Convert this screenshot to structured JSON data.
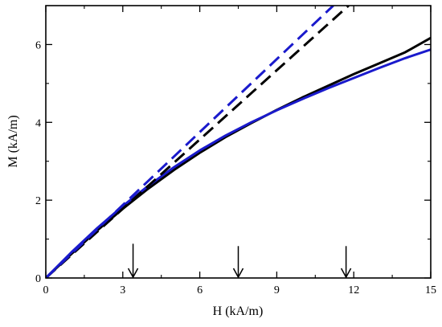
{
  "chart_data": {
    "type": "line",
    "xlabel": "H (kA/m)",
    "ylabel": "M (kA/m)",
    "xlim": [
      0,
      15
    ],
    "ylim": [
      0,
      7
    ],
    "x_ticks": [
      0,
      3,
      6,
      9,
      12,
      15
    ],
    "y_ticks": [
      0,
      2,
      4,
      6
    ],
    "x_tick_labels": [
      "0",
      "3",
      "6",
      "9",
      "12",
      "15"
    ],
    "y_tick_labels": [
      "0",
      "2",
      "4",
      "6"
    ],
    "minor_x_ticks": [
      1.5,
      4.5,
      7.5,
      10.5,
      13.5
    ],
    "minor_y_ticks": [
      1,
      3,
      5
    ],
    "grid": false,
    "series": [
      {
        "color": "#000000",
        "dash": "solid",
        "x": [
          0,
          1,
          2,
          3,
          4,
          5,
          6,
          7,
          8,
          9,
          10,
          11,
          12,
          13,
          14,
          15
        ],
        "y": [
          0,
          0.62,
          1.22,
          1.78,
          2.3,
          2.78,
          3.22,
          3.62,
          3.98,
          4.32,
          4.64,
          4.94,
          5.24,
          5.52,
          5.8,
          6.17
        ]
      },
      {
        "color": "#1a1acc",
        "dash": "solid",
        "x": [
          0,
          1,
          2,
          3,
          4,
          5,
          6,
          7,
          8,
          9,
          10,
          11,
          12,
          13,
          14,
          15
        ],
        "y": [
          0,
          0.66,
          1.28,
          1.85,
          2.37,
          2.85,
          3.28,
          3.66,
          4.0,
          4.31,
          4.6,
          4.88,
          5.14,
          5.4,
          5.65,
          5.87
        ]
      },
      {
        "color": "#000000",
        "dash": "dashed",
        "x": [
          0,
          11.8
        ],
        "y": [
          0,
          7.0
        ]
      },
      {
        "color": "#1a1acc",
        "dash": "dashed",
        "x": [
          0,
          11.2
        ],
        "y": [
          0,
          7.0
        ]
      }
    ],
    "annotations": [
      {
        "type": "down-arrow",
        "x": 3.4,
        "y_top": 0.88
      },
      {
        "type": "down-arrow",
        "x": 7.5,
        "y_top": 0.82
      },
      {
        "type": "down-arrow",
        "x": 11.7,
        "y_top": 0.82
      }
    ]
  }
}
